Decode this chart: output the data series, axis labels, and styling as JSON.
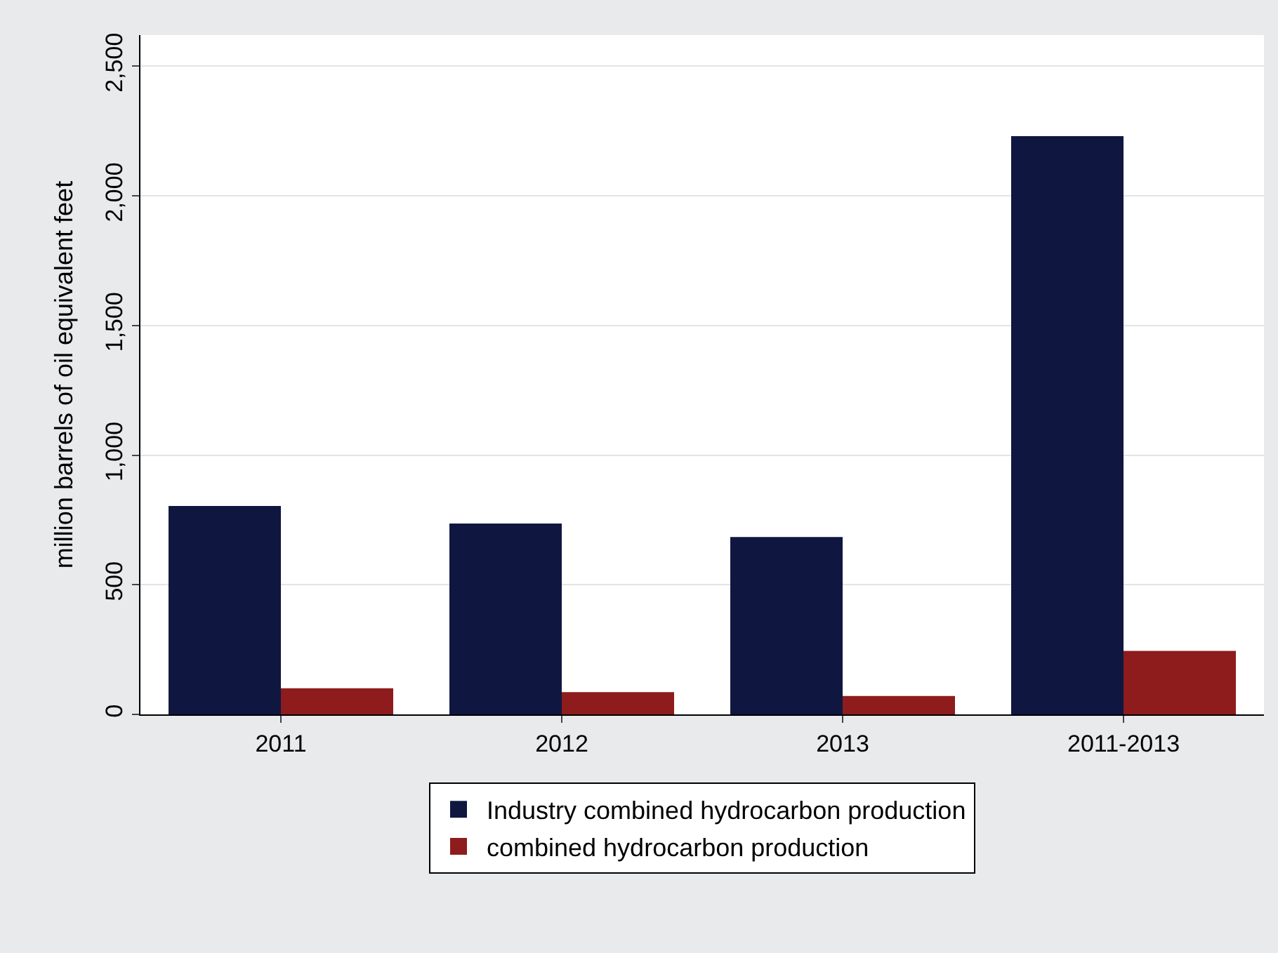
{
  "chart_data": {
    "type": "bar",
    "ylabel": "million barrels of oil equivalent feet",
    "categories": [
      "2011",
      "2012",
      "2013",
      "2011-2013"
    ],
    "series": [
      {
        "name": "Industry combined hydrocarbon production",
        "color": "#0f1740",
        "values": [
          804,
          736,
          684,
          2230
        ]
      },
      {
        "name": "combined hydrocarbon production",
        "color": "#8e1c1c",
        "values": [
          101,
          86,
          71,
          245
        ]
      }
    ],
    "ylim": [
      0,
      2620
    ],
    "yticks": [
      0,
      {
        "value": 500,
        "label": "500"
      },
      {
        "value": 1000,
        "label": "1,000"
      },
      {
        "value": 1500,
        "label": "1,500"
      },
      {
        "value": 2000,
        "label": "2,000"
      },
      {
        "value": 2500,
        "label": "2,500"
      }
    ],
    "grid": "y",
    "legend": "bottom"
  }
}
